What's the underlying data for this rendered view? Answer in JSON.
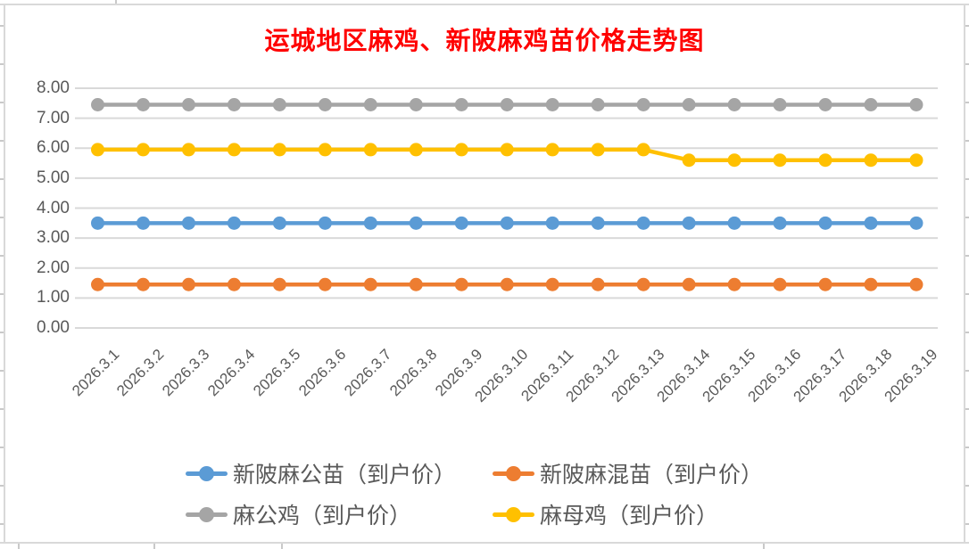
{
  "chart_data": {
    "type": "line",
    "title": "运城地区麻鸡、新陂麻鸡苗价格走势图",
    "title_color": "#FF0000",
    "categories": [
      "2026.3.1",
      "2026.3.2",
      "2026.3.3",
      "2026.3.4",
      "2026.3.5",
      "2026.3.6",
      "2026.3.7",
      "2026.3.8",
      "2026.3.9",
      "2026.3.10",
      "2026.3.11",
      "2026.3.12",
      "2026.3.13",
      "2026.3.14",
      "2026.3.15",
      "2026.3.16",
      "2026.3.17",
      "2026.3.18",
      "2026.3.19"
    ],
    "series": [
      {
        "name": "新陂麻公苗（到户价）",
        "color": "#5B9BD5",
        "values": [
          3.5,
          3.5,
          3.5,
          3.5,
          3.5,
          3.5,
          3.5,
          3.5,
          3.5,
          3.5,
          3.5,
          3.5,
          3.5,
          3.5,
          3.5,
          3.5,
          3.5,
          3.5,
          3.5
        ]
      },
      {
        "name": "新陂麻混苗（到户价）",
        "color": "#ED7D31",
        "values": [
          1.45,
          1.45,
          1.45,
          1.45,
          1.45,
          1.45,
          1.45,
          1.45,
          1.45,
          1.45,
          1.45,
          1.45,
          1.45,
          1.45,
          1.45,
          1.45,
          1.45,
          1.45,
          1.45
        ]
      },
      {
        "name": "麻公鸡（到户价）",
        "color": "#A5A5A5",
        "values": [
          7.45,
          7.45,
          7.45,
          7.45,
          7.45,
          7.45,
          7.45,
          7.45,
          7.45,
          7.45,
          7.45,
          7.45,
          7.45,
          7.45,
          7.45,
          7.45,
          7.45,
          7.45,
          7.45
        ]
      },
      {
        "name": "麻母鸡（到户价）",
        "color": "#FFC000",
        "values": [
          5.95,
          5.95,
          5.95,
          5.95,
          5.95,
          5.95,
          5.95,
          5.95,
          5.95,
          5.95,
          5.95,
          5.95,
          5.95,
          5.6,
          5.6,
          5.6,
          5.6,
          5.6,
          5.6
        ]
      }
    ],
    "ylim": [
      0,
      8
    ],
    "y_tick_step": 1,
    "y_tick_labels": [
      "0.00",
      "1.00",
      "2.00",
      "3.00",
      "4.00",
      "5.00",
      "6.00",
      "7.00",
      "8.00"
    ],
    "xlabel": "",
    "ylabel": "",
    "grid": true,
    "legend_position": "bottom",
    "axis_label_color": "#595959",
    "gridline_color": "#D9D9D9"
  }
}
